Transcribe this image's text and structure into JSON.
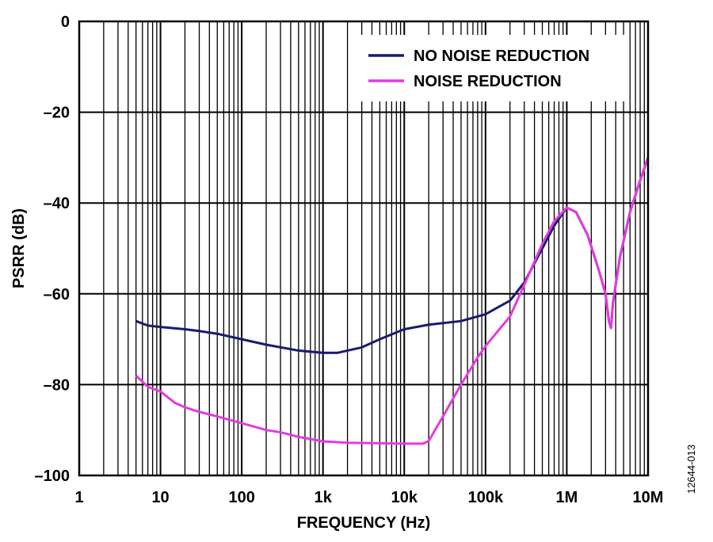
{
  "figure_id": "12644-013",
  "colors": {
    "no_noise_reduction": "#1a1a6e",
    "noise_reduction": "#e43ae0",
    "grid": "#000000"
  },
  "chart_data": {
    "type": "line",
    "xlabel": "FREQUENCY (Hz)",
    "ylabel": "PSRR (dB)",
    "x_scale": "log",
    "xlim": [
      1,
      10000000
    ],
    "ylim": [
      -100,
      0
    ],
    "grid": true,
    "legend_position": "top-right",
    "x_ticks": [
      {
        "value": 1,
        "label": "1"
      },
      {
        "value": 10,
        "label": "10"
      },
      {
        "value": 100,
        "label": "100"
      },
      {
        "value": 1000,
        "label": "1k"
      },
      {
        "value": 10000,
        "label": "10k"
      },
      {
        "value": 100000,
        "label": "100k"
      },
      {
        "value": 1000000,
        "label": "1M"
      },
      {
        "value": 10000000,
        "label": "10M"
      }
    ],
    "y_ticks": [
      {
        "value": 0,
        "label": "0"
      },
      {
        "value": -20,
        "label": "–20"
      },
      {
        "value": -40,
        "label": "–40"
      },
      {
        "value": -60,
        "label": "–60"
      },
      {
        "value": -80,
        "label": "–80"
      },
      {
        "value": -100,
        "label": "–100"
      }
    ],
    "series": [
      {
        "name": "NO NOISE REDUCTION",
        "color": "#1a1a6e",
        "points": [
          [
            5,
            -66
          ],
          [
            7,
            -67
          ],
          [
            10,
            -67.3
          ],
          [
            20,
            -67.8
          ],
          [
            30,
            -68.2
          ],
          [
            50,
            -68.8
          ],
          [
            100,
            -70
          ],
          [
            200,
            -71.2
          ],
          [
            500,
            -72.5
          ],
          [
            1000,
            -73
          ],
          [
            1500,
            -73
          ],
          [
            2000,
            -72.5
          ],
          [
            3000,
            -71.8
          ],
          [
            5000,
            -70
          ],
          [
            8000,
            -68.5
          ],
          [
            10000,
            -67.8
          ],
          [
            20000,
            -66.8
          ],
          [
            50000,
            -66
          ],
          [
            100000,
            -64.5
          ],
          [
            200000,
            -61.5
          ],
          [
            300000,
            -57.5
          ],
          [
            500000,
            -50
          ],
          [
            700000,
            -45
          ],
          [
            1000000,
            -41
          ],
          [
            1300000,
            -42
          ],
          [
            1800000,
            -47
          ],
          [
            2500000,
            -55
          ],
          [
            3000000,
            -60
          ],
          [
            3300000,
            -66
          ],
          [
            3500000,
            -67.5
          ],
          [
            3700000,
            -62
          ],
          [
            4500000,
            -52
          ],
          [
            6000000,
            -42
          ],
          [
            8000000,
            -35
          ],
          [
            10000000,
            -30
          ]
        ]
      },
      {
        "name": "NOISE REDUCTION",
        "color": "#e43ae0",
        "points": [
          [
            5,
            -78
          ],
          [
            7,
            -80.5
          ],
          [
            10,
            -81.5
          ],
          [
            15,
            -84
          ],
          [
            20,
            -85
          ],
          [
            30,
            -86
          ],
          [
            50,
            -87
          ],
          [
            100,
            -88.5
          ],
          [
            200,
            -90
          ],
          [
            300,
            -90.5
          ],
          [
            500,
            -91.5
          ],
          [
            1000,
            -92.5
          ],
          [
            2000,
            -92.8
          ],
          [
            5000,
            -92.9
          ],
          [
            10000,
            -93
          ],
          [
            17000,
            -93
          ],
          [
            20000,
            -92.4
          ],
          [
            30000,
            -87
          ],
          [
            50000,
            -80
          ],
          [
            80000,
            -74
          ],
          [
            100000,
            -71.5
          ],
          [
            200000,
            -65
          ],
          [
            300000,
            -58
          ],
          [
            500000,
            -49
          ],
          [
            700000,
            -44
          ],
          [
            1000000,
            -41
          ],
          [
            1300000,
            -42
          ],
          [
            1800000,
            -47
          ],
          [
            2500000,
            -55
          ],
          [
            3000000,
            -60
          ],
          [
            3300000,
            -66
          ],
          [
            3500000,
            -67.5
          ],
          [
            3700000,
            -62
          ],
          [
            4500000,
            -52
          ],
          [
            6000000,
            -42
          ],
          [
            8000000,
            -35
          ],
          [
            10000000,
            -30
          ]
        ]
      }
    ]
  }
}
